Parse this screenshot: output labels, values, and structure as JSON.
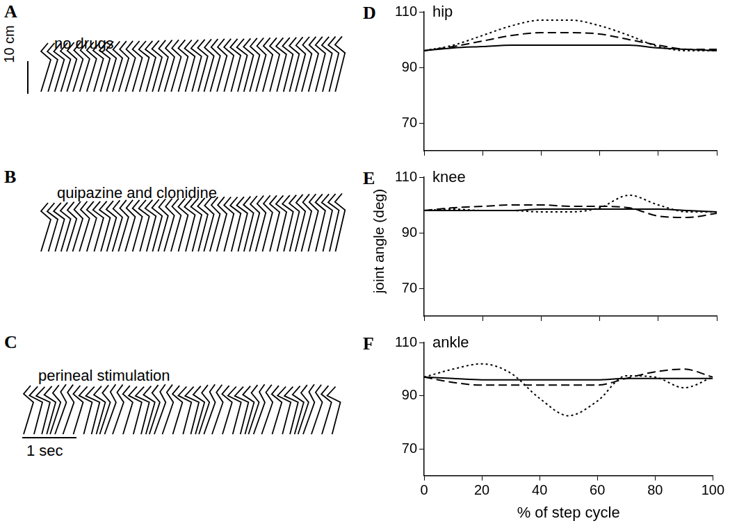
{
  "stick_diagrams": [
    {
      "panel": "A",
      "label": "no drugs"
    },
    {
      "panel": "B",
      "label": "quipazine and clonidine"
    },
    {
      "panel": "C",
      "label": "perineal stimulation"
    }
  ],
  "scale_bars": {
    "length": "10 cm",
    "time": "1 sec"
  },
  "chart_data": [
    {
      "panel": "D",
      "type": "line",
      "title": "hip",
      "x": [
        0,
        10,
        20,
        30,
        40,
        50,
        60,
        70,
        80,
        90,
        100
      ],
      "xlim": [
        0,
        100
      ],
      "xticks": [
        0,
        20,
        40,
        60,
        80,
        100
      ],
      "ylim": [
        60,
        110
      ],
      "yticks": [
        70,
        90,
        110
      ],
      "grid": false,
      "tick_labels": "y",
      "series": [
        {
          "values": [
            96,
            97,
            97.5,
            98,
            98,
            98,
            98,
            98,
            97,
            96.5,
            96
          ],
          "color": "#000000",
          "line_style": "solid"
        },
        {
          "values": [
            96,
            97.5,
            99.5,
            101.5,
            102.5,
            102.5,
            102,
            100,
            98,
            96.5,
            96.5
          ],
          "color": "#000000",
          "line_style": "dashed"
        },
        {
          "values": [
            96,
            98,
            101.5,
            105,
            107,
            107,
            105,
            101.5,
            97.5,
            96,
            96
          ],
          "color": "#000000",
          "line_style": "dotted"
        }
      ]
    },
    {
      "panel": "E",
      "type": "line",
      "title": "knee",
      "y_label": "joint angle (deg)",
      "x": [
        0,
        10,
        20,
        30,
        40,
        50,
        60,
        70,
        80,
        90,
        100
      ],
      "xlim": [
        0,
        100
      ],
      "xticks": [
        0,
        20,
        40,
        60,
        80,
        100
      ],
      "ylim": [
        60,
        110
      ],
      "yticks": [
        70,
        90,
        110
      ],
      "grid": false,
      "tick_labels": "y",
      "series": [
        {
          "values": [
            98,
            98,
            98,
            98,
            98.5,
            98.5,
            98.5,
            98.5,
            98.5,
            98,
            97.5
          ],
          "color": "#000000",
          "line_style": "solid"
        },
        {
          "values": [
            98,
            99,
            99.5,
            100,
            100,
            99.5,
            99.5,
            99,
            96,
            95.5,
            97
          ],
          "color": "#000000",
          "line_style": "dashed"
        },
        {
          "values": [
            98,
            98.5,
            98,
            98,
            97.5,
            97.5,
            99,
            103.5,
            100,
            97.5,
            97.5
          ],
          "color": "#000000",
          "line_style": "dotted"
        }
      ]
    },
    {
      "panel": "F",
      "type": "line",
      "title": "ankle",
      "x_label": "% of step cycle",
      "x": [
        0,
        10,
        20,
        30,
        40,
        50,
        60,
        70,
        80,
        90,
        100
      ],
      "xlim": [
        0,
        100
      ],
      "xticks": [
        0,
        20,
        40,
        60,
        80,
        100
      ],
      "ylim": [
        60,
        110
      ],
      "yticks": [
        70,
        90,
        110
      ],
      "grid": false,
      "tick_labels": true,
      "series": [
        {
          "values": [
            97,
            96.5,
            96,
            96,
            96,
            96,
            96,
            96.5,
            96.5,
            96.5,
            96.5
          ],
          "color": "#000000",
          "line_style": "solid"
        },
        {
          "values": [
            97,
            95,
            94,
            94,
            94,
            94,
            94,
            96.5,
            99,
            100,
            97
          ],
          "color": "#000000",
          "line_style": "dashed"
        },
        {
          "values": [
            97,
            100,
            102,
            98.5,
            89,
            82.5,
            88,
            97.5,
            97,
            93,
            97
          ],
          "color": "#000000",
          "line_style": "dotted"
        }
      ]
    }
  ]
}
